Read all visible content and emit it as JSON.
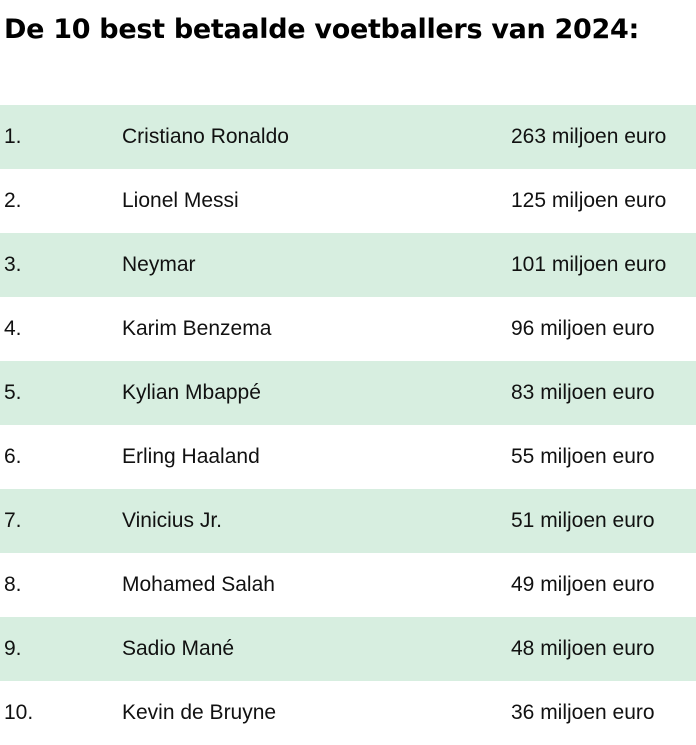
{
  "title": "De 10 best betaalde voetballers van 2024:",
  "row_bg_color": "#d7eee0",
  "rows": [
    {
      "rank": "1.",
      "name": "Cristiano Ronaldo",
      "amount": "263 miljoen euro"
    },
    {
      "rank": "2.",
      "name": "Lionel Messi",
      "amount": "125 miljoen euro"
    },
    {
      "rank": "3.",
      "name": "Neymar",
      "amount": "101 miljoen euro"
    },
    {
      "rank": "4.",
      "name": "Karim Benzema",
      "amount": "96 miljoen euro"
    },
    {
      "rank": "5.",
      "name": "Kylian Mbappé",
      "amount": "83 miljoen euro"
    },
    {
      "rank": "6.",
      "name": "Erling Haaland",
      "amount": "55 miljoen euro"
    },
    {
      "rank": "7.",
      "name": "Vinicius Jr.",
      "amount": "51 miljoen euro"
    },
    {
      "rank": "8.",
      "name": "Mohamed Salah",
      "amount": "49 miljoen euro"
    },
    {
      "rank": "9.",
      "name": "Sadio Mané",
      "amount": "48 miljoen euro"
    },
    {
      "rank": "10.",
      "name": "Kevin de Bruyne",
      "amount": "36 miljoen euro"
    }
  ]
}
